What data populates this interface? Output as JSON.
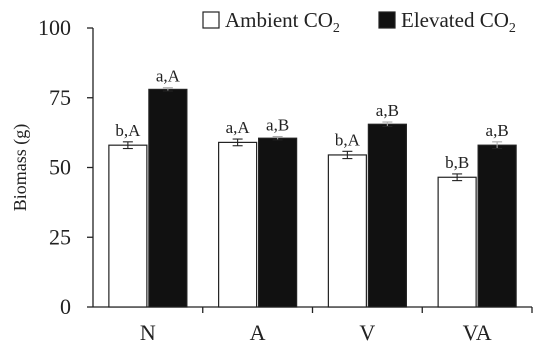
{
  "chart_data": {
    "type": "bar",
    "categories": [
      "N",
      "A",
      "V",
      "VA"
    ],
    "series": [
      {
        "name": "Ambient CO2",
        "legend_main": "Ambient CO",
        "legend_sub": "2",
        "color": "#ffffff",
        "values": [
          58,
          59,
          54.5,
          46.5
        ],
        "errors": [
          1.2,
          1.2,
          1.3,
          1.2
        ],
        "labels": [
          "b,A",
          "a,A",
          "b,A",
          "b,B"
        ]
      },
      {
        "name": "Elevated CO2",
        "legend_main": "Elevated CO",
        "legend_sub": "2",
        "color": "#111111",
        "values": [
          78,
          60.5,
          65.5,
          58
        ],
        "errors": [
          0.6,
          0.6,
          0.8,
          1.2
        ],
        "labels": [
          "a,A",
          "a,B",
          "a,B",
          "a,B"
        ]
      }
    ],
    "ylabel": "Biomass (g)",
    "ylim": [
      0,
      100
    ],
    "yticks": [
      "0",
      "25",
      "50",
      "75",
      "100"
    ],
    "legend_position": "top-right",
    "grid": false
  }
}
